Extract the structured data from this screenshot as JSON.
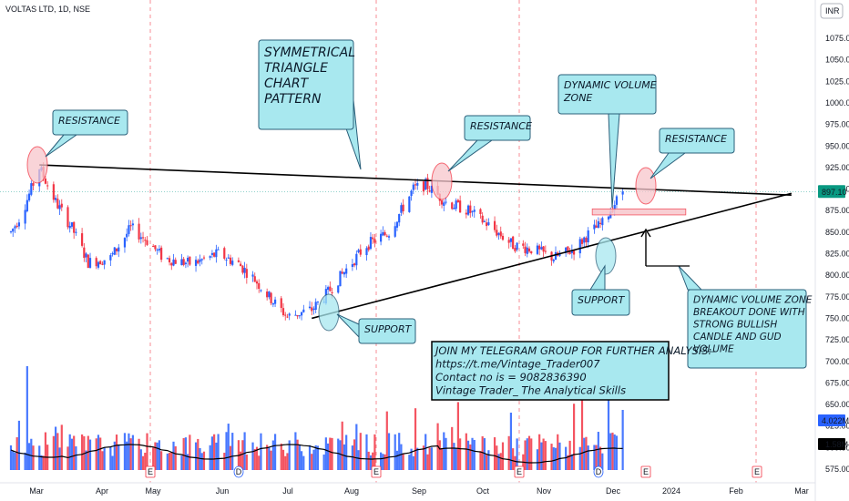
{
  "header": {
    "symbol": "VOLTAS LTD, 1D, NSE",
    "currency": "INR"
  },
  "price_axis": {
    "ticks": [
      "1075.00",
      "1050.00",
      "1025.00",
      "1000.00",
      "975.00",
      "950.00",
      "925.00",
      "900.00",
      "875.00",
      "850.00",
      "825.00",
      "800.00",
      "775.00",
      "750.00",
      "725.00",
      "700.00",
      "675.00",
      "650.00",
      "625.00",
      "600.00",
      "575.00"
    ],
    "last_price_label": "897.10",
    "volume_label": "4.022M",
    "volume_ma_label": "1.58M"
  },
  "time_axis": {
    "ticks": [
      "Mar",
      "Apr",
      "May",
      "Jun",
      "Jul",
      "Aug",
      "Sep",
      "Oct",
      "Nov",
      "Dec",
      "2024",
      "Feb",
      "Mar"
    ]
  },
  "annotations": {
    "pattern_title": [
      "SYMMETRICAL",
      "TRIANGLE",
      "CHART",
      "PATTERN"
    ],
    "resistance_1": "RESISTANCE",
    "resistance_2": "RESISTANCE",
    "resistance_3": "RESISTANCE",
    "support_1": "SUPPORT",
    "support_2": "SUPPORT",
    "volume_zone": [
      "DYNAMIC VOLUME",
      "ZONE"
    ],
    "breakout_note": [
      "DYNAMIC VOLUME ZONE",
      "BREAKOUT DONE WITH",
      "STRONG BULLISH",
      "CANDLE AND GUD",
      "VOLUME"
    ],
    "contact": [
      "JOIN MY TELEGRAM  GROUP FOR FURTHER ANALYSIS:-",
      "https://t.me/Vintage_Trader007",
      "Contact no is = 9082836390",
      "Vintage Trader_ The Analytical Skills"
    ]
  },
  "colors": {
    "up": "#2962ff",
    "down": "#f23645",
    "callout_fill": "#a8e8ef",
    "callout_stroke": "#2a5f7a",
    "trendline": "#000000",
    "zone": "#f7c6cc"
  },
  "chart_data": {
    "type": "candlestick",
    "title": "VOLTAS LTD, 1D, NSE",
    "ylim": [
      575,
      1085
    ],
    "x_range": [
      "2023-02-20",
      "2024-03-15"
    ],
    "ohlc_anchors": [
      {
        "date": "2023-02-20",
        "close": 850
      },
      {
        "date": "2023-02-25",
        "close": 870
      },
      {
        "date": "2023-03-02",
        "close": 900
      },
      {
        "date": "2023-03-06",
        "close": 925
      },
      {
        "date": "2023-03-14",
        "close": 885
      },
      {
        "date": "2023-03-22",
        "close": 855
      },
      {
        "date": "2023-03-30",
        "close": 815
      },
      {
        "date": "2023-04-10",
        "close": 820
      },
      {
        "date": "2023-04-20",
        "close": 855
      },
      {
        "date": "2023-04-28",
        "close": 840
      },
      {
        "date": "2023-05-06",
        "close": 820
      },
      {
        "date": "2023-05-20",
        "close": 813
      },
      {
        "date": "2023-06-02",
        "close": 825
      },
      {
        "date": "2023-06-12",
        "close": 813
      },
      {
        "date": "2023-06-20",
        "close": 795
      },
      {
        "date": "2023-06-27",
        "close": 775
      },
      {
        "date": "2023-07-06",
        "close": 752
      },
      {
        "date": "2023-07-18",
        "close": 760
      },
      {
        "date": "2023-07-26",
        "close": 780
      },
      {
        "date": "2023-08-05",
        "close": 810
      },
      {
        "date": "2023-08-14",
        "close": 835
      },
      {
        "date": "2023-08-25",
        "close": 850
      },
      {
        "date": "2023-09-06",
        "close": 900
      },
      {
        "date": "2023-09-12",
        "close": 905
      },
      {
        "date": "2023-09-22",
        "close": 885
      },
      {
        "date": "2023-10-03",
        "close": 875
      },
      {
        "date": "2023-10-12",
        "close": 860
      },
      {
        "date": "2023-10-25",
        "close": 835
      },
      {
        "date": "2023-11-04",
        "close": 830
      },
      {
        "date": "2023-11-14",
        "close": 820
      },
      {
        "date": "2023-11-24",
        "close": 830
      },
      {
        "date": "2023-12-02",
        "close": 850
      },
      {
        "date": "2023-12-08",
        "close": 860
      },
      {
        "date": "2023-12-13",
        "close": 880
      },
      {
        "date": "2023-12-18",
        "close": 897.1
      }
    ],
    "trendlines": [
      {
        "name": "resistance",
        "from": {
          "date": "2023-03-06",
          "price": 928
        },
        "to": {
          "date": "2024-03-10",
          "price": 893
        }
      },
      {
        "name": "support",
        "from": {
          "date": "2023-07-18",
          "price": 750
        },
        "to": {
          "date": "2024-03-10",
          "price": 895
        }
      }
    ],
    "volume_zone": {
      "from": "2023-12-03",
      "to": "2024-01-18",
      "low": 870,
      "high": 877
    },
    "volume": {
      "last": "4.022M",
      "ma": "1.58M"
    }
  }
}
